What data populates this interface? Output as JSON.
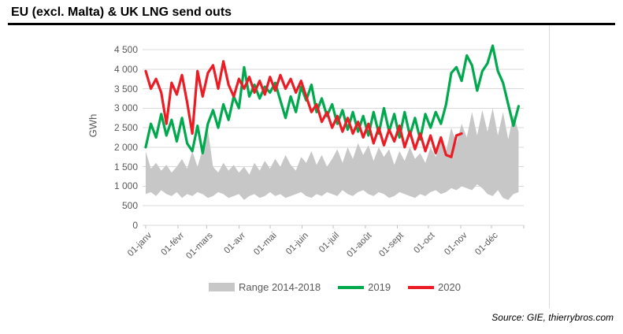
{
  "title": "EU (excl. Malta) & UK LNG send outs",
  "source": "Source: GIE, thierrybros.com",
  "colors": {
    "band": "#c7c7c7",
    "green_2019": "#00a84e",
    "red_2020": "#ec1c24",
    "grid": "#d9d9d9",
    "tick": "#bfbfbf",
    "axis_text": "#595959",
    "title_rule": "#000000"
  },
  "chart_data": {
    "type": "line",
    "title": "EU (excl. Malta) & UK LNG send outs",
    "xlabel": "",
    "ylabel": "GWh",
    "ylim": [
      0,
      4500
    ],
    "grid": true,
    "legend_position": "bottom",
    "ytick_values": [
      4500,
      4000,
      3500,
      3000,
      2500,
      2000,
      1500,
      1000,
      500,
      0
    ],
    "ytick_labels": [
      "4 500",
      "4 000",
      "3 500",
      "3 000",
      "2 500",
      "2 000",
      "1 500",
      "1 000",
      "500",
      "0"
    ],
    "categories": [
      "01-janv",
      "01-févr",
      "01-mars",
      "01-avr",
      "01-mai",
      "01-juin",
      "01-juil",
      "01-août",
      "01-sept",
      "01-oct",
      "01-nov",
      "01-déc"
    ],
    "month_start_days": [
      1,
      32,
      60,
      91,
      121,
      152,
      182,
      213,
      244,
      274,
      305,
      335,
      366
    ],
    "x_days": [
      1,
      6,
      11,
      16,
      21,
      26,
      31,
      36,
      41,
      46,
      51,
      56,
      61,
      66,
      71,
      76,
      81,
      86,
      91,
      96,
      101,
      106,
      111,
      116,
      121,
      126,
      131,
      136,
      141,
      146,
      151,
      156,
      161,
      166,
      171,
      176,
      181,
      186,
      191,
      196,
      201,
      206,
      211,
      216,
      221,
      226,
      231,
      236,
      241,
      246,
      251,
      256,
      261,
      266,
      271,
      276,
      281,
      286,
      291,
      296,
      301,
      306,
      311,
      316,
      321,
      326,
      331,
      336,
      341,
      346,
      351,
      356,
      361
    ],
    "series": [
      {
        "name": "Range 2014-2018",
        "type": "band",
        "color": "#c7c7c7",
        "min": [
          800,
          850,
          750,
          900,
          800,
          750,
          850,
          700,
          800,
          750,
          850,
          800,
          700,
          750,
          850,
          800,
          700,
          750,
          800,
          650,
          750,
          800,
          700,
          750,
          850,
          750,
          800,
          700,
          750,
          800,
          850,
          750,
          700,
          800,
          750,
          850,
          800,
          750,
          900,
          800,
          750,
          850,
          900,
          800,
          750,
          850,
          800,
          700,
          750,
          850,
          800,
          750,
          700,
          800,
          750,
          850,
          900,
          800,
          850,
          950,
          900,
          1000,
          950,
          900,
          1050,
          950,
          800,
          750,
          900,
          700,
          650,
          800,
          850
        ],
        "max": [
          1900,
          1450,
          1600,
          1400,
          1550,
          1350,
          1500,
          1700,
          1450,
          1900,
          1500,
          1950,
          2450,
          1500,
          1350,
          1600,
          1400,
          1550,
          1350,
          1500,
          1300,
          1600,
          1400,
          1650,
          1450,
          1700,
          1500,
          1800,
          1550,
          1400,
          1750,
          1600,
          1900,
          1550,
          1800,
          1500,
          1700,
          1950,
          1600,
          2000,
          1700,
          2100,
          1800,
          2050,
          1650,
          2000,
          1750,
          1950,
          1550,
          1900,
          1650,
          2000,
          1700,
          1850,
          1600,
          2000,
          1750,
          2200,
          1900,
          2500,
          2100,
          2600,
          2250,
          2900,
          2300,
          2950,
          2400,
          3000,
          2300,
          2900,
          2200,
          2850,
          2400
        ]
      },
      {
        "name": "2019",
        "type": "line",
        "color": "#00a84e",
        "values": [
          2000,
          2600,
          2250,
          2850,
          2300,
          2700,
          2150,
          2750,
          2100,
          1900,
          2550,
          1850,
          2600,
          2950,
          2500,
          3100,
          2700,
          3300,
          3000,
          4050,
          3300,
          3600,
          3250,
          3550,
          3400,
          3650,
          3200,
          2750,
          3300,
          2900,
          3550,
          3200,
          3600,
          2900,
          3250,
          2800,
          3100,
          2600,
          2950,
          2450,
          2900,
          2400,
          2800,
          2300,
          2900,
          2350,
          3000,
          2400,
          2850,
          2250,
          2900,
          2300,
          2750,
          2200,
          2850,
          2500,
          2900,
          2600,
          3100,
          3900,
          4050,
          3700,
          4350,
          4100,
          3450,
          3950,
          4150,
          4600,
          3950,
          3650,
          3100,
          2550,
          3050
        ]
      },
      {
        "name": "2020",
        "type": "line",
        "color": "#ec1c24",
        "values": [
          3950,
          3500,
          3750,
          3400,
          2600,
          3650,
          3350,
          3850,
          3150,
          2350,
          3950,
          3300,
          3900,
          4100,
          3500,
          4200,
          3600,
          3300,
          3750,
          3500,
          3800,
          3400,
          3700,
          3350,
          3800,
          3450,
          3850,
          3500,
          3750,
          3400,
          3700,
          3300,
          2900,
          3100,
          2650,
          2900,
          2500,
          2800,
          2400,
          2750,
          2350,
          2650,
          2250,
          2600,
          2100,
          2500,
          2050,
          2450,
          2150,
          2550,
          2000,
          2400,
          1950,
          2350,
          1900,
          2300,
          1850,
          2250,
          1800,
          1750,
          2300,
          2350
        ]
      }
    ]
  }
}
